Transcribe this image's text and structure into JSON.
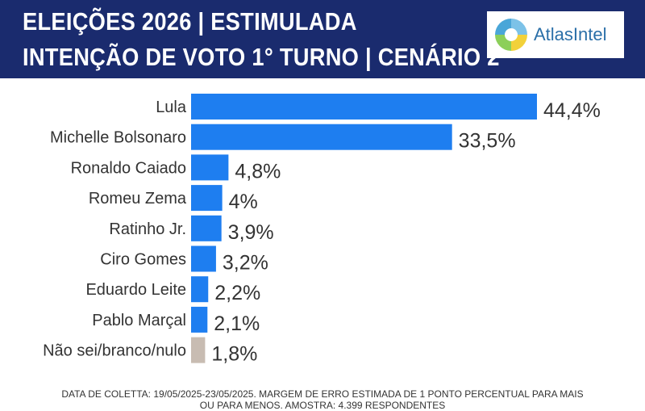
{
  "header": {
    "title_line1": "ELEIÇÕES 2026 | ESTIMULADA",
    "title_line2": "INTENÇÃO DE VOTO 1° TURNO | CENÁRIO 2",
    "background_color": "#1a2b6e"
  },
  "logo": {
    "text": "AtlasIntel"
  },
  "chart_data": {
    "type": "bar",
    "orientation": "horizontal",
    "categories": [
      "Lula",
      "Michelle Bolsonaro",
      "Ronaldo Caiado",
      "Romeu Zema",
      "Ratinho Jr.",
      "Ciro Gomes",
      "Eduardo Leite",
      "Pablo Marçal",
      "Não sei/branco/nulo"
    ],
    "values": [
      44.4,
      33.5,
      4.8,
      4,
      3.9,
      3.2,
      2.2,
      2.1,
      1.8
    ],
    "value_labels": [
      "44,4%",
      "33,5%",
      "4,8%",
      "4%",
      "3,9%",
      "3,2%",
      "2,2%",
      "2,1%",
      "1,8%"
    ],
    "colors": [
      "#1e7ef0",
      "#1e7ef0",
      "#1e7ef0",
      "#1e7ef0",
      "#1e7ef0",
      "#1e7ef0",
      "#1e7ef0",
      "#1e7ef0",
      "#c8bcb2"
    ],
    "xlim": [
      0,
      44.4
    ],
    "grid": false,
    "legend": "none"
  },
  "footer": {
    "line1": "DATA DE COLETTA: 19/05/2025-23/05/2025. MARGEM DE ERRO ESTIMADA DE 1 PONTO PERCENTUAL PARA MAIS",
    "line2": "OU PARA MENOS. AMOSTRA: 4.399 RESPONDENTES"
  }
}
